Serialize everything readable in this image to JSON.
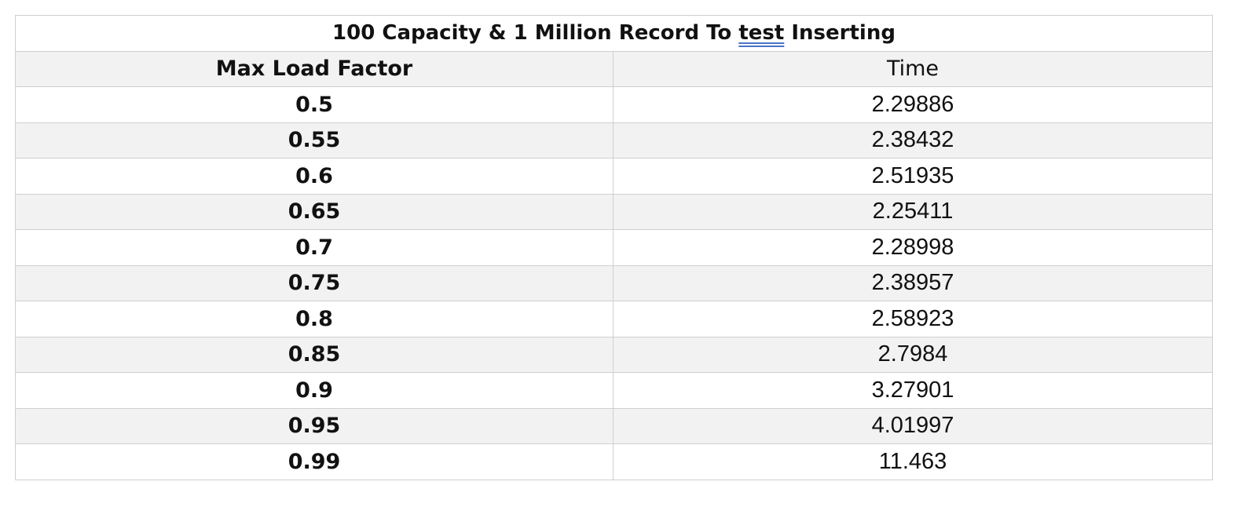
{
  "table": {
    "title_parts": {
      "before": "100 Capacity & 1 Million Record To ",
      "underlined": "test",
      "after": " Inserting"
    },
    "headers": {
      "factor": "Max Load Factor",
      "time": "Time"
    },
    "rows": [
      {
        "factor": "0.5",
        "time": "2.29886"
      },
      {
        "factor": "0.55",
        "time": "2.38432"
      },
      {
        "factor": "0.6",
        "time": "2.51935"
      },
      {
        "factor": "0.65",
        "time": "2.25411"
      },
      {
        "factor": "0.7",
        "time": "2.28998"
      },
      {
        "factor": "0.75",
        "time": "2.38957"
      },
      {
        "factor": "0.8",
        "time": "2.58923"
      },
      {
        "factor": "0.85",
        "time": "2.7984"
      },
      {
        "factor": "0.9",
        "time": "3.27901"
      },
      {
        "factor": "0.95",
        "time": "4.01997"
      },
      {
        "factor": "0.99",
        "time": "11.463"
      }
    ]
  },
  "colors": {
    "grid": "#cfcfcf",
    "band": "#f2f2f2",
    "underline": "#4a74c9"
  }
}
